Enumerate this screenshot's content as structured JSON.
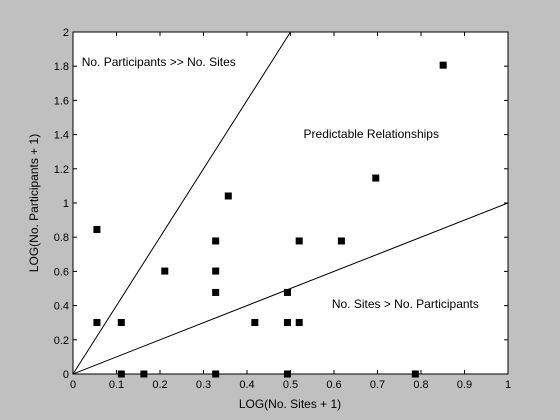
{
  "chart_data": {
    "type": "scatter",
    "xlabel": "LOG(No. Sites + 1)",
    "ylabel": "LOG(No. Participants + 1)",
    "xlim": [
      0,
      1
    ],
    "ylim": [
      0,
      2
    ],
    "x_ticks": [
      0,
      0.1,
      0.2,
      0.3,
      0.4,
      0.5,
      0.6,
      0.7,
      0.8,
      0.9,
      1
    ],
    "x_tick_labels": [
      "0",
      "0.1",
      "0.2",
      "0.3",
      "0.4",
      "0.5",
      "0.6",
      "0.7",
      "0.8",
      "0.9",
      "1"
    ],
    "y_ticks": [
      0,
      0.2,
      0.4,
      0.6,
      0.8,
      1,
      1.2,
      1.4,
      1.6,
      1.8,
      2
    ],
    "y_tick_labels": [
      "0",
      "0.2",
      "0.4",
      "0.6",
      "0.8",
      "1",
      "1.2",
      "1.4",
      "1.6",
      "1.8",
      "2"
    ],
    "grid": false,
    "marker": "square",
    "point_color": "#000000",
    "points": [
      {
        "x": 0.055,
        "y": 0.845
      },
      {
        "x": 0.055,
        "y": 0.301
      },
      {
        "x": 0.111,
        "y": 0.301
      },
      {
        "x": 0.111,
        "y": 0.0
      },
      {
        "x": 0.163,
        "y": 0.0
      },
      {
        "x": 0.211,
        "y": 0.602
      },
      {
        "x": 0.328,
        "y": 0.778
      },
      {
        "x": 0.328,
        "y": 0.602
      },
      {
        "x": 0.328,
        "y": 0.477
      },
      {
        "x": 0.328,
        "y": 0.0
      },
      {
        "x": 0.357,
        "y": 1.041
      },
      {
        "x": 0.418,
        "y": 0.301
      },
      {
        "x": 0.493,
        "y": 0.477
      },
      {
        "x": 0.493,
        "y": 0.301
      },
      {
        "x": 0.493,
        "y": 0.0
      },
      {
        "x": 0.52,
        "y": 0.778
      },
      {
        "x": 0.52,
        "y": 0.301
      },
      {
        "x": 0.617,
        "y": 0.778
      },
      {
        "x": 0.696,
        "y": 1.146
      },
      {
        "x": 0.787,
        "y": 0.0
      },
      {
        "x": 0.851,
        "y": 1.806
      }
    ],
    "reference_lines": [
      {
        "x": [
          0,
          0.5
        ],
        "y": [
          0,
          2
        ]
      },
      {
        "x": [
          0,
          1
        ],
        "y": [
          0,
          1
        ]
      }
    ],
    "annotations": [
      {
        "text": "No. Participants >> No. Sites",
        "x": 0.02,
        "y": 1.8
      },
      {
        "text": "Predictable Relationships",
        "x": 0.53,
        "y": 1.38
      },
      {
        "text": "No. Sites > No. Participants",
        "x": 0.595,
        "y": 0.385
      }
    ]
  }
}
